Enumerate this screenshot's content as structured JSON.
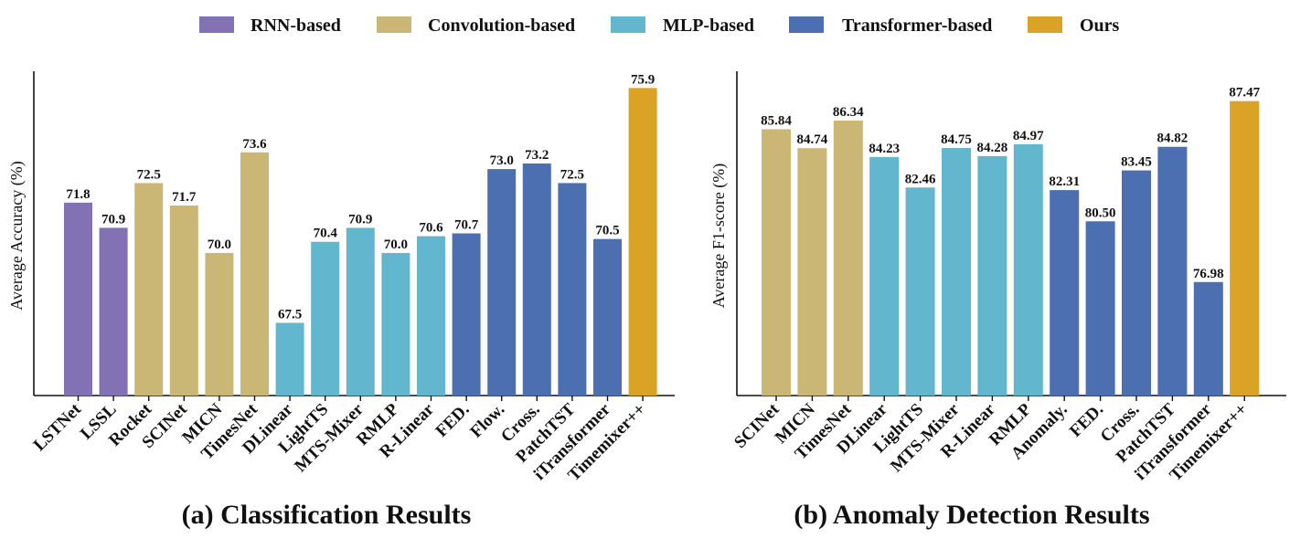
{
  "legend": [
    {
      "label": "RNN-based",
      "color": "#8272b4"
    },
    {
      "label": "Convolution-based",
      "color": "#cbb775"
    },
    {
      "label": "MLP-based",
      "color": "#62b6ce"
    },
    {
      "label": "Transformer-based",
      "color": "#4b6fb0"
    },
    {
      "label": "Ours",
      "color": "#dba326"
    }
  ],
  "highlight_color": "#ee1111",
  "chart_data": [
    {
      "type": "bar",
      "caption": "(a) Classification Results",
      "ylabel": "Average Accuracy (%)",
      "ylim": [
        64.9,
        76.5
      ],
      "categories": [
        "LSTNet",
        "LSSL",
        "Rocket",
        "SCINet",
        "MICN",
        "TimesNet",
        "DLinear",
        "LightTS",
        "MTS-Mixer",
        "RMLP",
        "R-Linear",
        "FED.",
        "Flow.",
        "Cross.",
        "PatchTST",
        "iTransformer",
        "Timemixer++"
      ],
      "values": [
        71.8,
        70.9,
        72.5,
        71.7,
        70.0,
        73.6,
        67.5,
        70.4,
        70.9,
        70.0,
        70.6,
        70.7,
        73.0,
        73.2,
        72.5,
        70.5,
        75.9
      ],
      "labels": [
        "71.8",
        "70.9",
        "72.5",
        "71.7",
        "70.0",
        "73.6",
        "67.5",
        "70.4",
        "70.9",
        "70.0",
        "70.6",
        "70.7",
        "73.0",
        "73.2",
        "72.5",
        "70.5",
        "75.9"
      ],
      "groups": [
        "RNN-based",
        "RNN-based",
        "Convolution-based",
        "Convolution-based",
        "Convolution-based",
        "Convolution-based",
        "MLP-based",
        "MLP-based",
        "MLP-based",
        "MLP-based",
        "MLP-based",
        "Transformer-based",
        "Transformer-based",
        "Transformer-based",
        "Transformer-based",
        "Transformer-based",
        "Ours"
      ]
    },
    {
      "type": "bar",
      "caption": "(b) Anomaly Detection Results",
      "ylabel": "Average F1-score (%)",
      "ylim": [
        70.4,
        89.2
      ],
      "categories": [
        "SCINet",
        "MICN",
        "TimesNet",
        "DLinear",
        "LightTS",
        "MTS-Mixer",
        "R-Linear",
        "RMLP",
        "Anomaly.",
        "FED.",
        "Cross.",
        "PatchTST",
        "iTransformer",
        "Timemixer++"
      ],
      "values": [
        85.84,
        84.74,
        86.34,
        84.23,
        82.46,
        84.75,
        84.28,
        84.97,
        82.31,
        80.5,
        83.45,
        84.82,
        76.98,
        87.47
      ],
      "labels": [
        "85.84",
        "84.74",
        "86.34",
        "84.23",
        "82.46",
        "84.75",
        "84.28",
        "84.97",
        "82.31",
        "80.50",
        "83.45",
        "84.82",
        "76.98",
        "87.47"
      ],
      "groups": [
        "Convolution-based",
        "Convolution-based",
        "Convolution-based",
        "MLP-based",
        "MLP-based",
        "MLP-based",
        "MLP-based",
        "MLP-based",
        "Transformer-based",
        "Transformer-based",
        "Transformer-based",
        "Transformer-based",
        "Transformer-based",
        "Ours"
      ]
    }
  ]
}
